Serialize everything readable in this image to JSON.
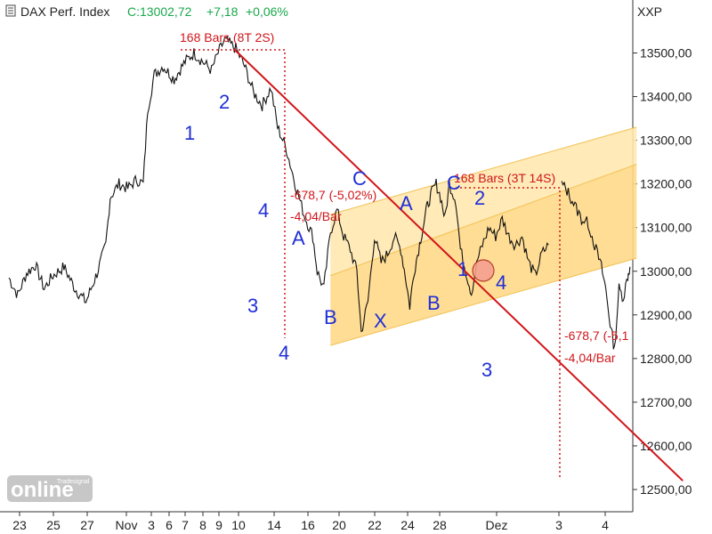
{
  "header": {
    "symbol": "DAX Perf. Index",
    "close_label": "C:13002,72",
    "change": "+7,18",
    "change_pct": "+0,06%",
    "right_label": "XXP",
    "close_color": "#17a84a"
  },
  "watermark": {
    "brand": "online",
    "sub": "Tradesignal"
  },
  "chart_data": {
    "type": "line",
    "title": "DAX Perf. Index",
    "y_unit_label": "XXP",
    "ylim": [
      12450,
      13650
    ],
    "y_ticks": [
      "12500,00",
      "12600,00",
      "12700,00",
      "12800,00",
      "12900,00",
      "13000,00",
      "13100,00",
      "13200,00",
      "13300,00",
      "13400,00",
      "13500,00"
    ],
    "x_ticks": [
      "23",
      "25",
      "27",
      "Nov",
      "3",
      "6",
      "7",
      "8",
      "9",
      "10",
      "14",
      "16",
      "20",
      "22",
      "24",
      "28",
      "Dez",
      "3",
      "4"
    ],
    "x_index_range": [
      0,
      24
    ],
    "series_anchors": [
      [
        0,
        12985
      ],
      [
        0.4,
        12945
      ],
      [
        0.8,
        12995
      ],
      [
        1.2,
        13015
      ],
      [
        1.6,
        12960
      ],
      [
        2.0,
        12990
      ],
      [
        2.5,
        13010
      ],
      [
        3.0,
        12960
      ],
      [
        3.5,
        12930
      ],
      [
        4.0,
        12995
      ],
      [
        4.4,
        13060
      ],
      [
        4.6,
        13170
      ],
      [
        5.0,
        13200
      ],
      [
        5.4,
        13190
      ],
      [
        5.8,
        13210
      ],
      [
        6.1,
        13200
      ],
      [
        6.3,
        13370
      ],
      [
        6.6,
        13450
      ],
      [
        7.0,
        13470
      ],
      [
        7.5,
        13440
      ],
      [
        8.0,
        13480
      ],
      [
        8.4,
        13500
      ],
      [
        8.8,
        13480
      ],
      [
        9.2,
        13460
      ],
      [
        9.5,
        13500
      ],
      [
        9.8,
        13530
      ],
      [
        10.3,
        13510
      ],
      [
        10.7,
        13470
      ],
      [
        11.1,
        13410
      ],
      [
        11.5,
        13380
      ],
      [
        11.9,
        13420
      ],
      [
        12.2,
        13330
      ],
      [
        12.6,
        13280
      ],
      [
        13.0,
        13200
      ],
      [
        13.4,
        13130
      ],
      [
        13.8,
        13080
      ],
      [
        14.0,
        13000
      ],
      [
        14.3,
        12960
      ],
      [
        14.6,
        13090
      ],
      [
        14.9,
        13140
      ],
      [
        15.2,
        13080
      ],
      [
        15.5,
        13050
      ],
      [
        15.8,
        13000
      ],
      [
        16.0,
        12860
      ],
      [
        16.3,
        12930
      ],
      [
        16.6,
        13080
      ],
      [
        16.9,
        13020
      ],
      [
        17.2,
        13040
      ],
      [
        17.5,
        13080
      ],
      [
        17.8,
        13050
      ],
      [
        18.0,
        12990
      ],
      [
        18.2,
        12920
      ],
      [
        18.4,
        13000
      ],
      [
        18.6,
        13050
      ],
      [
        18.8,
        13100
      ],
      [
        19.0,
        13150
      ],
      [
        19.2,
        13180
      ],
      [
        19.4,
        13200
      ],
      [
        19.6,
        13170
      ],
      [
        19.8,
        13120
      ],
      [
        20.0,
        13200
      ],
      [
        20.3,
        13160
      ],
      [
        20.5,
        13050
      ],
      [
        20.8,
        12990
      ],
      [
        21.0,
        12950
      ],
      [
        21.3,
        13030
      ],
      [
        21.5,
        13060
      ],
      [
        21.8,
        13100
      ],
      [
        22.1,
        13080
      ],
      [
        22.4,
        13120
      ],
      [
        22.7,
        13080
      ],
      [
        23.0,
        13060
      ],
      [
        23.3,
        13080
      ],
      [
        23.6,
        13020
      ],
      [
        23.9,
        12990
      ],
      [
        24.2,
        13040
      ],
      [
        24.5,
        13060
      ]
    ],
    "series2_anchors": [
      [
        25.1,
        13200
      ],
      [
        25.4,
        13180
      ],
      [
        25.7,
        13150
      ],
      [
        26.0,
        13120
      ],
      [
        26.3,
        13110
      ],
      [
        26.6,
        13060
      ],
      [
        26.9,
        13010
      ],
      [
        27.1,
        12960
      ],
      [
        27.3,
        12880
      ],
      [
        27.5,
        12820
      ],
      [
        27.7,
        12960
      ],
      [
        27.9,
        12940
      ],
      [
        28.1,
        12990
      ],
      [
        28.2,
        13010
      ]
    ],
    "x_domain": [
      0,
      29.5
    ],
    "channel": {
      "upper": [
        [
          14.6,
          13130
        ],
        [
          28.5,
          13330
        ]
      ],
      "lower": [
        [
          14.6,
          12830
        ],
        [
          28.5,
          13030
        ]
      ],
      "mid": [
        [
          14.6,
          12990
        ],
        [
          28.5,
          13245
        ]
      ]
    },
    "trendline": [
      [
        10.2,
        13510
      ],
      [
        30.6,
        12520
      ]
    ],
    "annotations_text": {
      "bars1": "168 Bars (8T 2S)",
      "bars2": "168 Bars (3T 14S)",
      "diff1": "-678,7 (-5,02%)",
      "rate1": "-4,04/Bar",
      "diff2": "-678,7 (-5,1",
      "rate2": "-4,04/Bar"
    },
    "wave_labels": [
      "1",
      "2",
      "3",
      "4",
      "4",
      "A",
      "B",
      "C",
      "X",
      "A",
      "B",
      "C",
      "2",
      "1",
      "4",
      "3"
    ]
  }
}
